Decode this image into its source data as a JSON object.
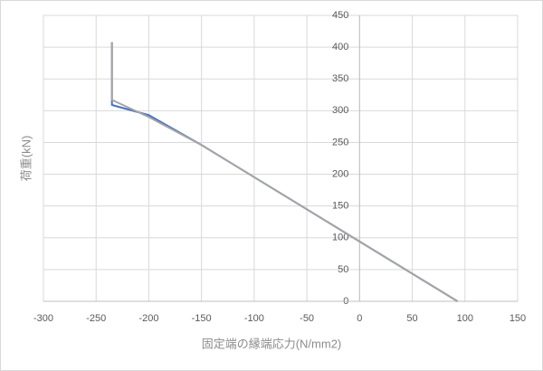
{
  "chart_data": {
    "type": "line",
    "x_label": "固定端の縁端応力(N/mm2)",
    "y_label": "荷重(kN)",
    "xlim": [
      -300,
      150
    ],
    "xticks": [
      -300,
      -250,
      -200,
      -150,
      -100,
      -50,
      0,
      50,
      100,
      150
    ],
    "ylim": [
      0,
      450
    ],
    "yticks": [
      0,
      50,
      100,
      150,
      200,
      250,
      300,
      350,
      400,
      450
    ],
    "grid": true,
    "series": [
      {
        "color": "#4472c4",
        "x": [
          -235,
          -235,
          -200,
          -150,
          93
        ],
        "values": [
          408,
          309,
          293,
          246,
          0
        ]
      },
      {
        "color": "#a5a5a5",
        "x": [
          -235,
          -235,
          -200,
          -150,
          93
        ],
        "values": [
          408,
          317,
          290,
          246,
          0
        ]
      }
    ]
  }
}
